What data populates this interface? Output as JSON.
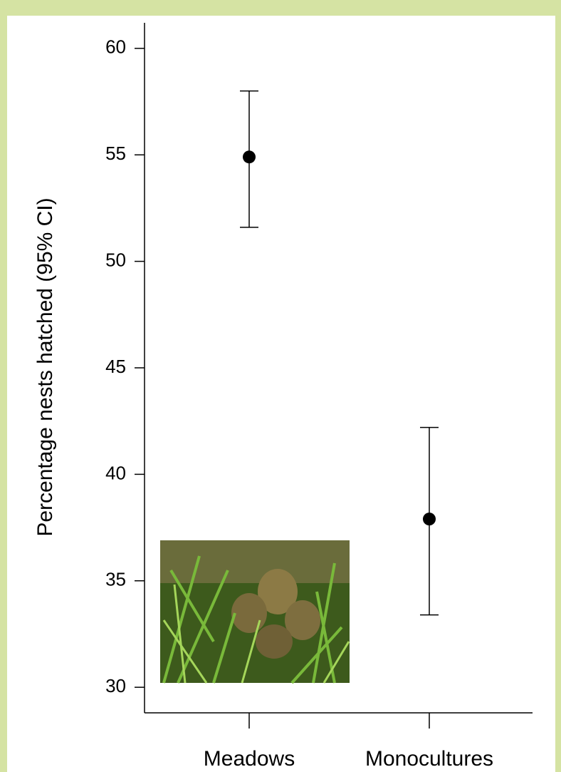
{
  "chart_data": {
    "type": "errorbar",
    "y_label": "Percentage nests hatched (95% CI)",
    "categories": [
      "Meadows",
      "Monocultures"
    ],
    "values": [
      54.9,
      37.9
    ],
    "lower": [
      51.6,
      33.4
    ],
    "upper": [
      58.0,
      42.2
    ],
    "color": "#000000",
    "ylim": [
      28.8,
      61.2
    ],
    "yticks": [
      30,
      35,
      40,
      45,
      50,
      55,
      60
    ],
    "grid": false
  }
}
